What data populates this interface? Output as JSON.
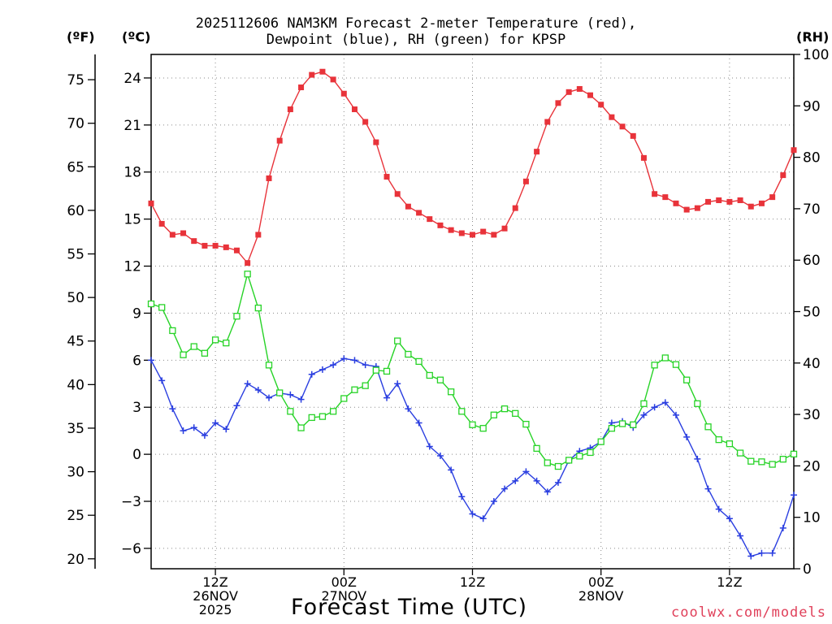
{
  "header": {
    "title_line1": "2025112606 NAM3KM Forecast 2-meter Temperature (red),",
    "title_line2": "Dewpoint (blue), RH (green) for KPSP"
  },
  "units": {
    "fahrenheit": "(ºF)",
    "celsius": "(ºC)",
    "rh": "(RH)"
  },
  "footer": {
    "xlabel": "Forecast Time (UTC)",
    "credit": "coolwx.com/models"
  },
  "chart_data": {
    "type": "line",
    "title": "2025112606 NAM3KM Forecast 2-meter Temperature (red), Dewpoint (blue), RH (green) for KPSP",
    "xlabel": "Forecast Time (UTC)",
    "x_unit": "forecast hour (0 = 06Z 26NOV 2025)",
    "xlim": [
      0,
      60
    ],
    "x_ticks": [
      {
        "hour": 6,
        "lines": [
          "12Z",
          "26NOV",
          "2025"
        ]
      },
      {
        "hour": 18,
        "lines": [
          "00Z",
          "27NOV"
        ]
      },
      {
        "hour": 30,
        "lines": [
          "12Z"
        ]
      },
      {
        "hour": 42,
        "lines": [
          "00Z",
          "28NOV"
        ]
      },
      {
        "hour": 54,
        "lines": [
          "12Z"
        ]
      }
    ],
    "y_celsius": {
      "label": "(ºC)",
      "range": [
        -7.3,
        25.5
      ],
      "ticks": [
        24,
        21,
        18,
        15,
        12,
        9,
        6,
        3,
        0,
        -3,
        -6
      ]
    },
    "y_fahrenheit": {
      "label": "(ºF)",
      "ticks": [
        75,
        70,
        65,
        60,
        55,
        50,
        45,
        40,
        35,
        30,
        25,
        20
      ]
    },
    "y_rh": {
      "label": "(RH)",
      "range": [
        0,
        100
      ],
      "ticks": [
        100,
        90,
        80,
        70,
        60,
        50,
        40,
        30,
        20,
        10,
        0
      ]
    },
    "grid": true,
    "x": [
      0,
      1,
      2,
      3,
      4,
      5,
      6,
      7,
      8,
      9,
      10,
      11,
      12,
      13,
      14,
      15,
      16,
      17,
      18,
      19,
      20,
      21,
      22,
      23,
      24,
      25,
      26,
      27,
      28,
      29,
      30,
      31,
      32,
      33,
      34,
      35,
      36,
      37,
      38,
      39,
      40,
      41,
      42,
      43,
      44,
      45,
      46,
      47,
      48,
      49,
      50,
      51,
      52,
      53,
      54,
      55,
      56,
      57,
      58,
      59,
      60
    ],
    "series": [
      {
        "name": "2-meter Temperature",
        "color": "#e8333a",
        "marker": "filled-square",
        "axis": "celsius",
        "values": [
          16.0,
          14.7,
          14.0,
          14.1,
          13.6,
          13.3,
          13.3,
          13.2,
          13.0,
          12.2,
          14.0,
          17.6,
          20.0,
          22.0,
          23.4,
          24.2,
          24.4,
          23.9,
          23.0,
          22.0,
          21.2,
          19.9,
          17.7,
          16.6,
          15.8,
          15.4,
          15.0,
          14.6,
          14.3,
          14.1,
          14.0,
          14.2,
          14.0,
          14.4,
          15.7,
          17.4,
          19.3,
          21.2,
          22.4,
          23.1,
          23.3,
          22.9,
          22.3,
          21.5,
          20.9,
          20.3,
          18.9,
          16.6,
          16.4,
          16.0,
          15.6,
          15.7,
          16.1,
          16.2,
          16.1,
          16.2,
          15.8,
          16.0,
          16.4,
          17.8,
          19.4
        ]
      },
      {
        "name": "Dewpoint",
        "color": "#2a3ee0",
        "marker": "plus",
        "axis": "celsius",
        "values": [
          6.0,
          4.7,
          2.9,
          1.5,
          1.7,
          1.2,
          2.0,
          1.6,
          3.1,
          4.5,
          4.1,
          3.6,
          3.9,
          3.8,
          3.5,
          5.1,
          5.4,
          5.7,
          6.1,
          6.0,
          5.7,
          5.6,
          3.6,
          4.5,
          2.9,
          2.0,
          0.5,
          -0.1,
          -1.0,
          -2.7,
          -3.8,
          -4.1,
          -3.0,
          -2.2,
          -1.7,
          -1.1,
          -1.7,
          -2.4,
          -1.8,
          -0.4,
          0.2,
          0.4,
          0.8,
          2.0,
          2.1,
          1.7,
          2.5,
          3.0,
          3.3,
          2.5,
          1.1,
          -0.3,
          -2.2,
          -3.5,
          -4.1,
          -5.2,
          -6.5,
          -6.3,
          -6.3,
          -4.7,
          -2.6
        ]
      },
      {
        "name": "RH",
        "color": "#27d327",
        "marker": "open-square",
        "axis": "rh",
        "values": [
          51.5,
          50.8,
          46.3,
          41.6,
          43.2,
          41.9,
          44.5,
          43.9,
          49.1,
          57.3,
          50.7,
          39.6,
          34.2,
          30.6,
          27.4,
          29.4,
          29.6,
          30.6,
          33.1,
          34.8,
          35.6,
          38.6,
          38.4,
          44.3,
          41.7,
          40.3,
          37.6,
          36.7,
          34.4,
          30.6,
          28.0,
          27.3,
          29.9,
          31.1,
          30.2,
          28.1,
          23.4,
          20.6,
          19.9,
          21.1,
          21.9,
          22.6,
          24.7,
          27.3,
          28.2,
          28.0,
          32.1,
          39.6,
          41.0,
          39.7,
          36.7,
          32.1,
          27.6,
          25.1,
          24.3,
          22.5,
          20.9,
          20.8,
          20.3,
          21.3,
          22.3
        ]
      }
    ]
  }
}
